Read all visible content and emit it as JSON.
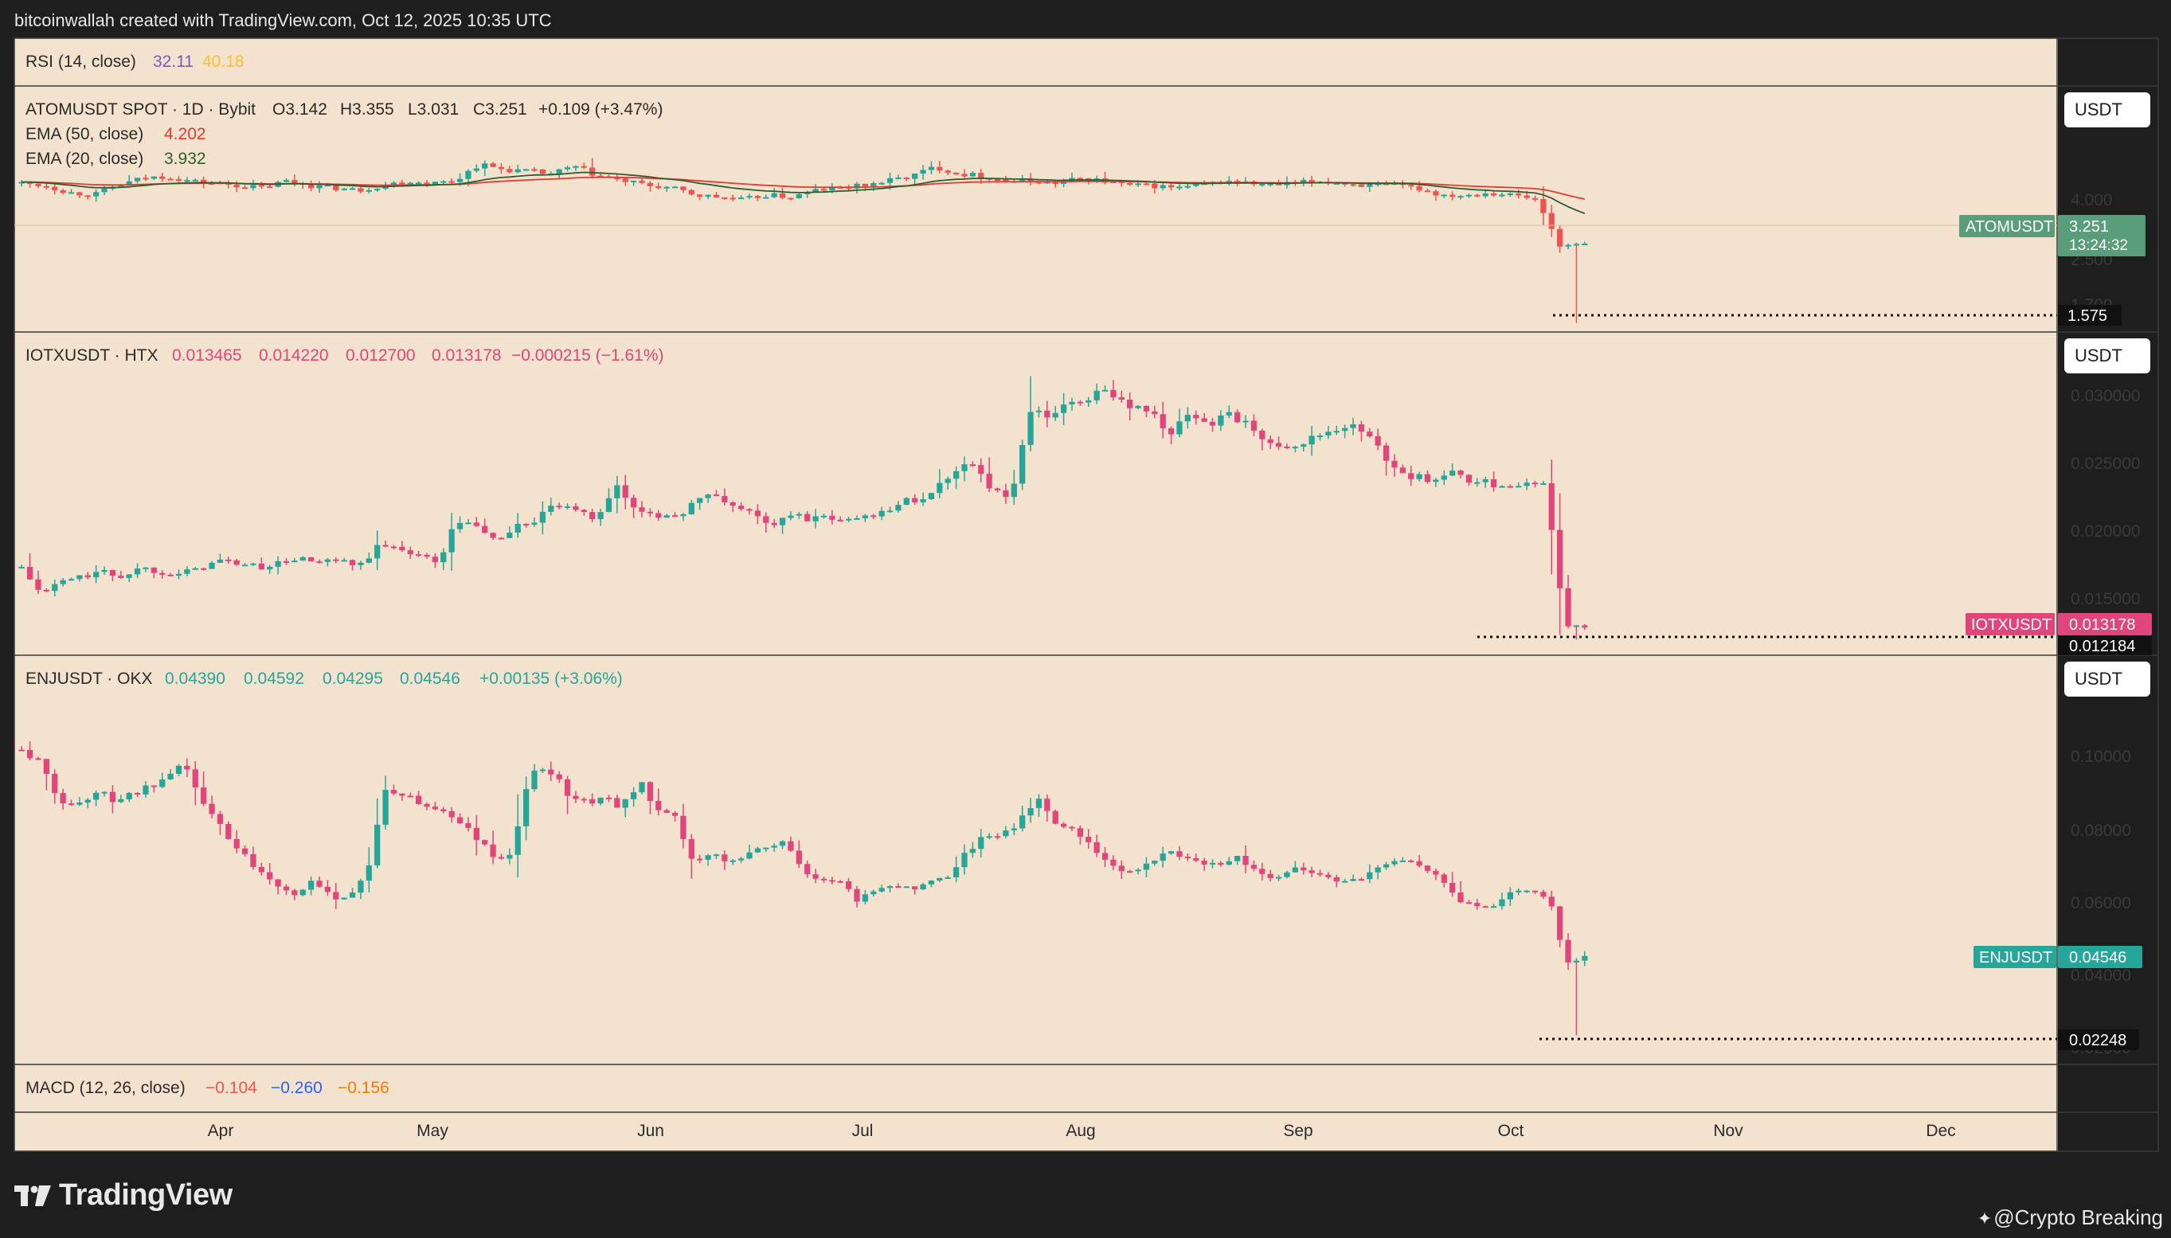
{
  "header": {
    "attribution": "bitcoinwallah created with TradingView.com, Oct 12, 2025 10:35 UTC"
  },
  "footer": {
    "logo_text": "TradingView",
    "credit": "@Crypto Breaking"
  },
  "colors": {
    "background": "#f3e2ce",
    "up": "#26a69a",
    "down": "#ef5350",
    "iotx_down": "#e0457b",
    "ema50": "#e53935",
    "ema20": "#2e5d2e",
    "rsi": "#7e57c2",
    "rsi_ma": "#fbc02d"
  },
  "rsi_pane": {
    "label": "RSI (14, close)",
    "value1": "32.11",
    "value2": "40.18"
  },
  "macd_pane": {
    "label": "MACD (12, 26, close)",
    "value1": "−0.104",
    "value2": "−0.260",
    "value3": "−0.156"
  },
  "time_axis": {
    "labels": [
      "Apr",
      "May",
      "Jun",
      "Jul",
      "Aug",
      "Sep",
      "Oct",
      "Nov",
      "Dec"
    ]
  },
  "chart_data": [
    {
      "type": "candlestick",
      "symbol": "ATOMUSDT",
      "title": "ATOMUSDT SPOT · 1D · Bybit",
      "ohlc_text": {
        "open": "O3.142",
        "high": "H3.355",
        "low": "L3.031",
        "close": "C3.251",
        "change": "+0.109 (+3.47%)"
      },
      "indicators": [
        {
          "name": "EMA (50, close)",
          "value": "4.202"
        },
        {
          "name": "EMA (20, close)",
          "value": "3.932"
        }
      ],
      "currency": "USDT",
      "y_ticks": [
        "4.000",
        "2.500",
        "1.700"
      ],
      "last_label": "ATOMUSDT",
      "last_price": "3.251",
      "countdown": "13:24:32",
      "low_marker": "1.575",
      "close_path": [
        4.55,
        4.5,
        4.35,
        4.3,
        4.5,
        4.65,
        4.7,
        4.6,
        4.55,
        4.5,
        4.45,
        4.6,
        4.5,
        4.45,
        4.4,
        4.5,
        4.6,
        4.55,
        4.6,
        4.95,
        4.85,
        4.8,
        4.75,
        4.9,
        4.7,
        4.6,
        4.5,
        4.45,
        4.3,
        4.25,
        4.2,
        4.3,
        4.25,
        4.4,
        4.45,
        4.5,
        4.6,
        4.7,
        4.9,
        4.75,
        4.7,
        4.6,
        4.6,
        4.55,
        4.65,
        4.6,
        4.5,
        4.5,
        4.45,
        4.5,
        4.6,
        4.55,
        4.5,
        4.55,
        4.6,
        4.55,
        4.5,
        4.5,
        4.45,
        4.3,
        4.3,
        4.35,
        4.3,
        4.2,
        3.2,
        3.25
      ]
    },
    {
      "type": "candlestick",
      "symbol": "IOTXUSDT",
      "title": "IOTXUSDT · HTX",
      "ohlc_text": {
        "open": "0.013465",
        "high": "0.014220",
        "low": "0.012700",
        "close": "0.013178",
        "change": "−0.000215 (−1.61%)"
      },
      "currency": "USDT",
      "y_ticks": [
        "0.030000",
        "0.025000",
        "0.020000",
        "0.015000"
      ],
      "last_label": "IOTXUSDT",
      "last_price": "0.013178",
      "low_marker": "0.012184",
      "close_path": [
        0.0175,
        0.0155,
        0.0165,
        0.0168,
        0.0172,
        0.0168,
        0.0175,
        0.0172,
        0.017,
        0.0175,
        0.018,
        0.0178,
        0.0175,
        0.0178,
        0.0182,
        0.0178,
        0.018,
        0.0175,
        0.019,
        0.019,
        0.0185,
        0.0178,
        0.021,
        0.0205,
        0.0195,
        0.0205,
        0.021,
        0.0222,
        0.0215,
        0.0212,
        0.0235,
        0.0218,
        0.0215,
        0.021,
        0.0225,
        0.0228,
        0.022,
        0.0215,
        0.0205,
        0.0215,
        0.021,
        0.0212,
        0.021,
        0.0215,
        0.022,
        0.0225,
        0.023,
        0.0245,
        0.0255,
        0.0232,
        0.0225,
        0.029,
        0.0285,
        0.0295,
        0.03,
        0.0305,
        0.0295,
        0.029,
        0.0275,
        0.0285,
        0.028,
        0.029,
        0.0278,
        0.027,
        0.0265,
        0.0268,
        0.0275,
        0.028,
        0.0272,
        0.0255,
        0.0242,
        0.024,
        0.0245,
        0.024,
        0.0238,
        0.0235,
        0.0238,
        0.0235,
        0.0133,
        0.0132
      ]
    },
    {
      "type": "candlestick",
      "symbol": "ENJUSDT",
      "title": "ENJUSDT · OKX",
      "ohlc_text": {
        "open": "0.04390",
        "high": "0.04592",
        "low": "0.04295",
        "close": "0.04546",
        "change": "+0.00135 (+3.06%)"
      },
      "currency": "USDT",
      "y_ticks": [
        "0.10000",
        "0.08000",
        "0.06000",
        "0.04000",
        "0.02000"
      ],
      "last_label": "ENJUSDT",
      "last_price": "0.04546",
      "low_marker": "0.02248",
      "close_path": [
        0.104,
        0.1,
        0.09,
        0.088,
        0.092,
        0.09,
        0.091,
        0.093,
        0.095,
        0.1,
        0.088,
        0.082,
        0.075,
        0.07,
        0.066,
        0.063,
        0.066,
        0.062,
        0.062,
        0.069,
        0.092,
        0.091,
        0.088,
        0.087,
        0.084,
        0.079,
        0.073,
        0.074,
        0.098,
        0.099,
        0.092,
        0.089,
        0.09,
        0.088,
        0.095,
        0.086,
        0.084,
        0.071,
        0.074,
        0.072,
        0.075,
        0.076,
        0.078,
        0.069,
        0.067,
        0.066,
        0.061,
        0.064,
        0.066,
        0.064,
        0.067,
        0.068,
        0.075,
        0.079,
        0.08,
        0.084,
        0.09,
        0.083,
        0.081,
        0.076,
        0.071,
        0.069,
        0.071,
        0.075,
        0.074,
        0.071,
        0.072,
        0.073,
        0.069,
        0.067,
        0.07,
        0.069,
        0.067,
        0.067,
        0.068,
        0.071,
        0.073,
        0.07,
        0.067,
        0.061,
        0.059,
        0.06,
        0.063,
        0.064,
        0.062,
        0.043,
        0.045
      ]
    }
  ]
}
